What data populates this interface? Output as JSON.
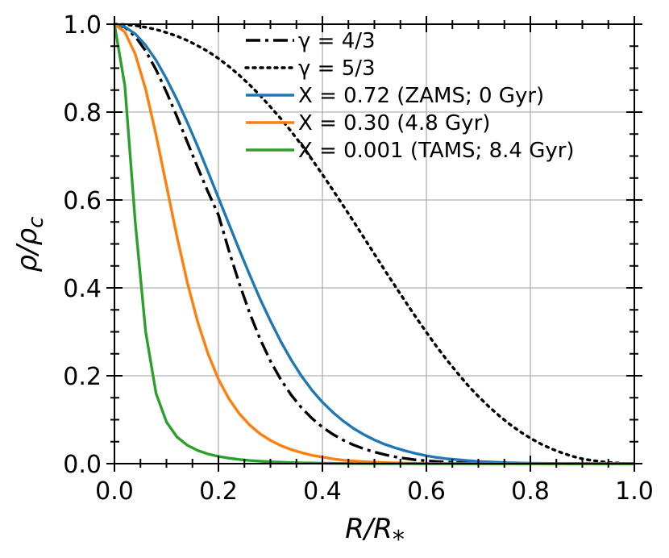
{
  "chart_data": {
    "type": "line",
    "xlabel": "R/R",
    "xlabel_sub": "*",
    "ylabel": "ρ/ρ",
    "ylabel_sub": "c",
    "xlim": [
      0.0,
      1.0
    ],
    "ylim": [
      0.0,
      1.0
    ],
    "xticks": [
      "0.0",
      "0.2",
      "0.4",
      "0.6",
      "0.8",
      "1.0"
    ],
    "yticks": [
      "0.0",
      "0.2",
      "0.4",
      "0.6",
      "0.8",
      "1.0"
    ],
    "grid": true,
    "legend_position": "top-right",
    "x": [
      0.0,
      0.02,
      0.04,
      0.06,
      0.08,
      0.1,
      0.12,
      0.14,
      0.16,
      0.18,
      0.2,
      0.22,
      0.24,
      0.26,
      0.28,
      0.3,
      0.32,
      0.34,
      0.36,
      0.38,
      0.4,
      0.42,
      0.44,
      0.46,
      0.48,
      0.5,
      0.52,
      0.54,
      0.56,
      0.58,
      0.6,
      0.62,
      0.64,
      0.66,
      0.68,
      0.7,
      0.72,
      0.74,
      0.76,
      0.78,
      0.8,
      0.82,
      0.84,
      0.86,
      0.88,
      0.9,
      0.92,
      0.94,
      0.96,
      0.98,
      1.0
    ],
    "series": [
      {
        "name": "γ = 4/3",
        "color": "#000000",
        "style": "dashdot",
        "values": [
          1.0,
          0.9929,
          0.9722,
          0.9394,
          0.8964,
          0.8458,
          0.7902,
          0.7322,
          0.6742,
          0.6183,
          0.566,
          0.4852,
          0.4103,
          0.3429,
          0.2839,
          0.2335,
          0.1914,
          0.1562,
          0.127,
          0.103,
          0.083,
          0.067,
          0.0535,
          0.0425,
          0.0337,
          0.0265,
          0.0205,
          0.0155,
          0.0117,
          0.0087,
          0.0065,
          0.0048,
          0.0035,
          0.0025,
          0.0018,
          0.0012,
          0.0008,
          0.0005,
          0.0003,
          0.0002,
          0.0001,
          0.0001,
          0.0,
          0.0,
          0.0,
          0.0,
          0.0,
          0.0,
          0.0,
          0.0,
          0.0
        ]
      },
      {
        "name": "γ = 5/3",
        "color": "#000000",
        "style": "dotted",
        "values": [
          1.0,
          0.9992,
          0.997,
          0.993,
          0.988,
          0.981,
          0.973,
          0.963,
          0.951,
          0.938,
          0.922,
          0.904,
          0.884,
          0.862,
          0.838,
          0.812,
          0.785,
          0.756,
          0.725,
          0.692,
          0.658,
          0.623,
          0.587,
          0.551,
          0.514,
          0.477,
          0.44,
          0.404,
          0.368,
          0.333,
          0.299,
          0.266,
          0.235,
          0.206,
          0.178,
          0.153,
          0.13,
          0.109,
          0.09,
          0.073,
          0.058,
          0.045,
          0.034,
          0.025,
          0.017,
          0.011,
          0.007,
          0.004,
          0.002,
          0.0007,
          0.0
        ]
      },
      {
        "name": "X = 0.72 (ZAMS; 0 Gyr)",
        "color": "#1f77b4",
        "style": "solid",
        "values": [
          1.0,
          0.994,
          0.978,
          0.952,
          0.918,
          0.876,
          0.829,
          0.777,
          0.722,
          0.664,
          0.605,
          0.546,
          0.487,
          0.43,
          0.375,
          0.325,
          0.278,
          0.236,
          0.199,
          0.167,
          0.14,
          0.117,
          0.097,
          0.08,
          0.066,
          0.054,
          0.044,
          0.036,
          0.029,
          0.023,
          0.018,
          0.014,
          0.011,
          0.009,
          0.007,
          0.005,
          0.004,
          0.003,
          0.002,
          0.0015,
          0.001,
          0.0007,
          0.0005,
          0.0003,
          0.0002,
          0.0001,
          0.0,
          0.0,
          0.0,
          0.0,
          0.0
        ]
      },
      {
        "name": "X = 0.30 (4.8 Gyr)",
        "color": "#ff7f0e",
        "style": "solid",
        "values": [
          1.0,
          0.982,
          0.932,
          0.852,
          0.748,
          0.633,
          0.518,
          0.413,
          0.323,
          0.25,
          0.192,
          0.148,
          0.114,
          0.088,
          0.068,
          0.053,
          0.041,
          0.032,
          0.025,
          0.019,
          0.015,
          0.011,
          0.008,
          0.006,
          0.0045,
          0.0033,
          0.0024,
          0.0017,
          0.0012,
          0.0008,
          0.0006,
          0.0004,
          0.0003,
          0.0002,
          0.0001,
          0.0001,
          0.0,
          0.0,
          0.0,
          0.0,
          0.0,
          0.0,
          0.0,
          0.0,
          0.0,
          0.0,
          0.0,
          0.0,
          0.0,
          0.0,
          0.0
        ]
      },
      {
        "name": "X = 0.001 (TAMS; 8.4 Gyr)",
        "color": "#2ca02c",
        "style": "solid",
        "values": [
          1.0,
          0.86,
          0.55,
          0.3,
          0.16,
          0.095,
          0.061,
          0.042,
          0.03,
          0.022,
          0.0165,
          0.0125,
          0.0095,
          0.0072,
          0.0055,
          0.0042,
          0.0032,
          0.0024,
          0.0018,
          0.0014,
          0.001,
          0.0008,
          0.0006,
          0.0004,
          0.0003,
          0.0002,
          0.0002,
          0.0001,
          0.0001,
          0.0,
          0.0,
          0.0,
          0.0,
          0.0,
          0.0,
          0.0,
          0.0,
          0.0,
          0.0,
          0.0,
          0.0,
          0.0,
          0.0,
          0.0,
          0.0,
          0.0,
          0.0,
          0.0,
          0.0,
          0.0,
          0.0
        ]
      }
    ]
  }
}
